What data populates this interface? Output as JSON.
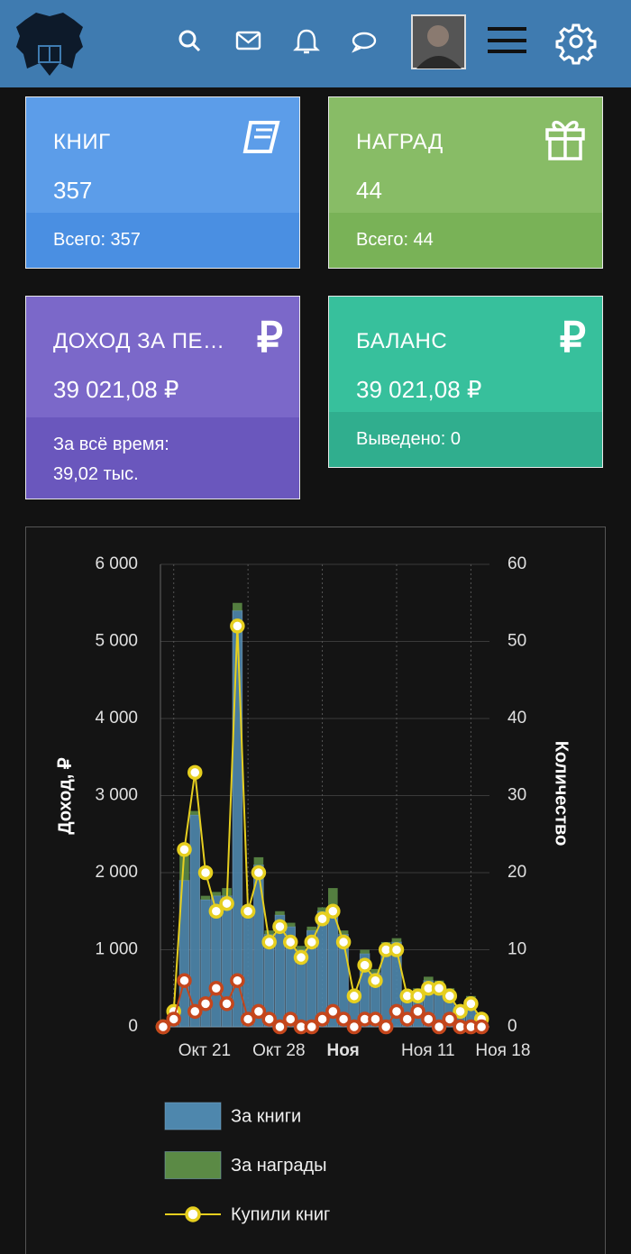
{
  "cards": [
    {
      "title": "КНИГ",
      "value": "357",
      "footer": [
        "Всего: 357"
      ]
    },
    {
      "title": "НАГРАД",
      "value": "44",
      "footer": [
        "Всего: 44"
      ]
    },
    {
      "title": "ДОХОД ЗА ПЕ…",
      "value": "39 021,08 ₽",
      "footer": [
        "За всё время:",
        "39,02 тыс."
      ],
      "icon": "₽"
    },
    {
      "title": "БАЛАНС",
      "value": "39 021,08 ₽",
      "footer": [
        "Выведено: 0"
      ],
      "icon": "₽"
    }
  ],
  "chart_data": {
    "type": "bar",
    "categories": [
      null,
      "Окт 21",
      null,
      null,
      null,
      null,
      null,
      null,
      "Окт 28",
      null,
      null,
      null,
      null,
      null,
      null,
      "Ноя",
      null,
      null,
      null,
      null,
      null,
      null,
      "Ноя 11",
      null,
      null,
      null,
      null,
      null,
      null,
      "Ноя 18",
      null
    ],
    "ylabel": "Доход, ₽",
    "y2label": "Количество",
    "ylim": [
      0,
      6000
    ],
    "yticks": [
      0,
      {
        "value": 1000,
        "label": "1 000"
      },
      {
        "value": 2000,
        "label": "2 000"
      },
      {
        "value": 3000,
        "label": "3 000"
      },
      {
        "value": 4000,
        "label": "4 000"
      },
      {
        "value": 5000,
        "label": "5 000"
      },
      {
        "value": 6000,
        "label": "6 000"
      }
    ],
    "y2lim": [
      0,
      60
    ],
    "y2ticks": [
      0,
      10,
      20,
      30,
      40,
      50,
      60
    ],
    "grid": true,
    "series": [
      {
        "name": "За книги",
        "type": "bar",
        "color": "#4e87ad",
        "values": [
          0,
          150,
          1900,
          2750,
          1650,
          1700,
          1700,
          5400,
          1450,
          2100,
          1200,
          1450,
          1300,
          1000,
          1250,
          1500,
          1550,
          1200,
          400,
          950,
          700,
          1050,
          1100,
          400,
          450,
          600,
          550,
          450,
          200,
          350,
          100
        ]
      },
      {
        "name": "За награды",
        "type": "bar",
        "color": "#5b8a45",
        "values": [
          0,
          50,
          350,
          50,
          50,
          50,
          100,
          100,
          50,
          100,
          50,
          50,
          50,
          50,
          50,
          50,
          250,
          50,
          50,
          50,
          50,
          50,
          50,
          50,
          50,
          50,
          50,
          50,
          50,
          50,
          50
        ]
      },
      {
        "name": "Купили книг",
        "type": "line",
        "axis": "y2",
        "color": "#e6cf1f",
        "values": [
          0,
          2,
          23,
          33,
          20,
          15,
          16,
          52,
          15,
          20,
          11,
          13,
          11,
          9,
          11,
          14,
          15,
          11,
          4,
          8,
          6,
          10,
          10,
          4,
          4,
          5,
          5,
          4,
          2,
          3,
          1
        ]
      },
      {
        "type": "line",
        "axis": "y2",
        "color": "#c4461c",
        "values": [
          0,
          1,
          6,
          2,
          3,
          5,
          3,
          6,
          1,
          2,
          1,
          0,
          1,
          0,
          0,
          1,
          2,
          1,
          0,
          1,
          1,
          0,
          2,
          1,
          2,
          1,
          0,
          1,
          0,
          0,
          0
        ]
      }
    ]
  }
}
